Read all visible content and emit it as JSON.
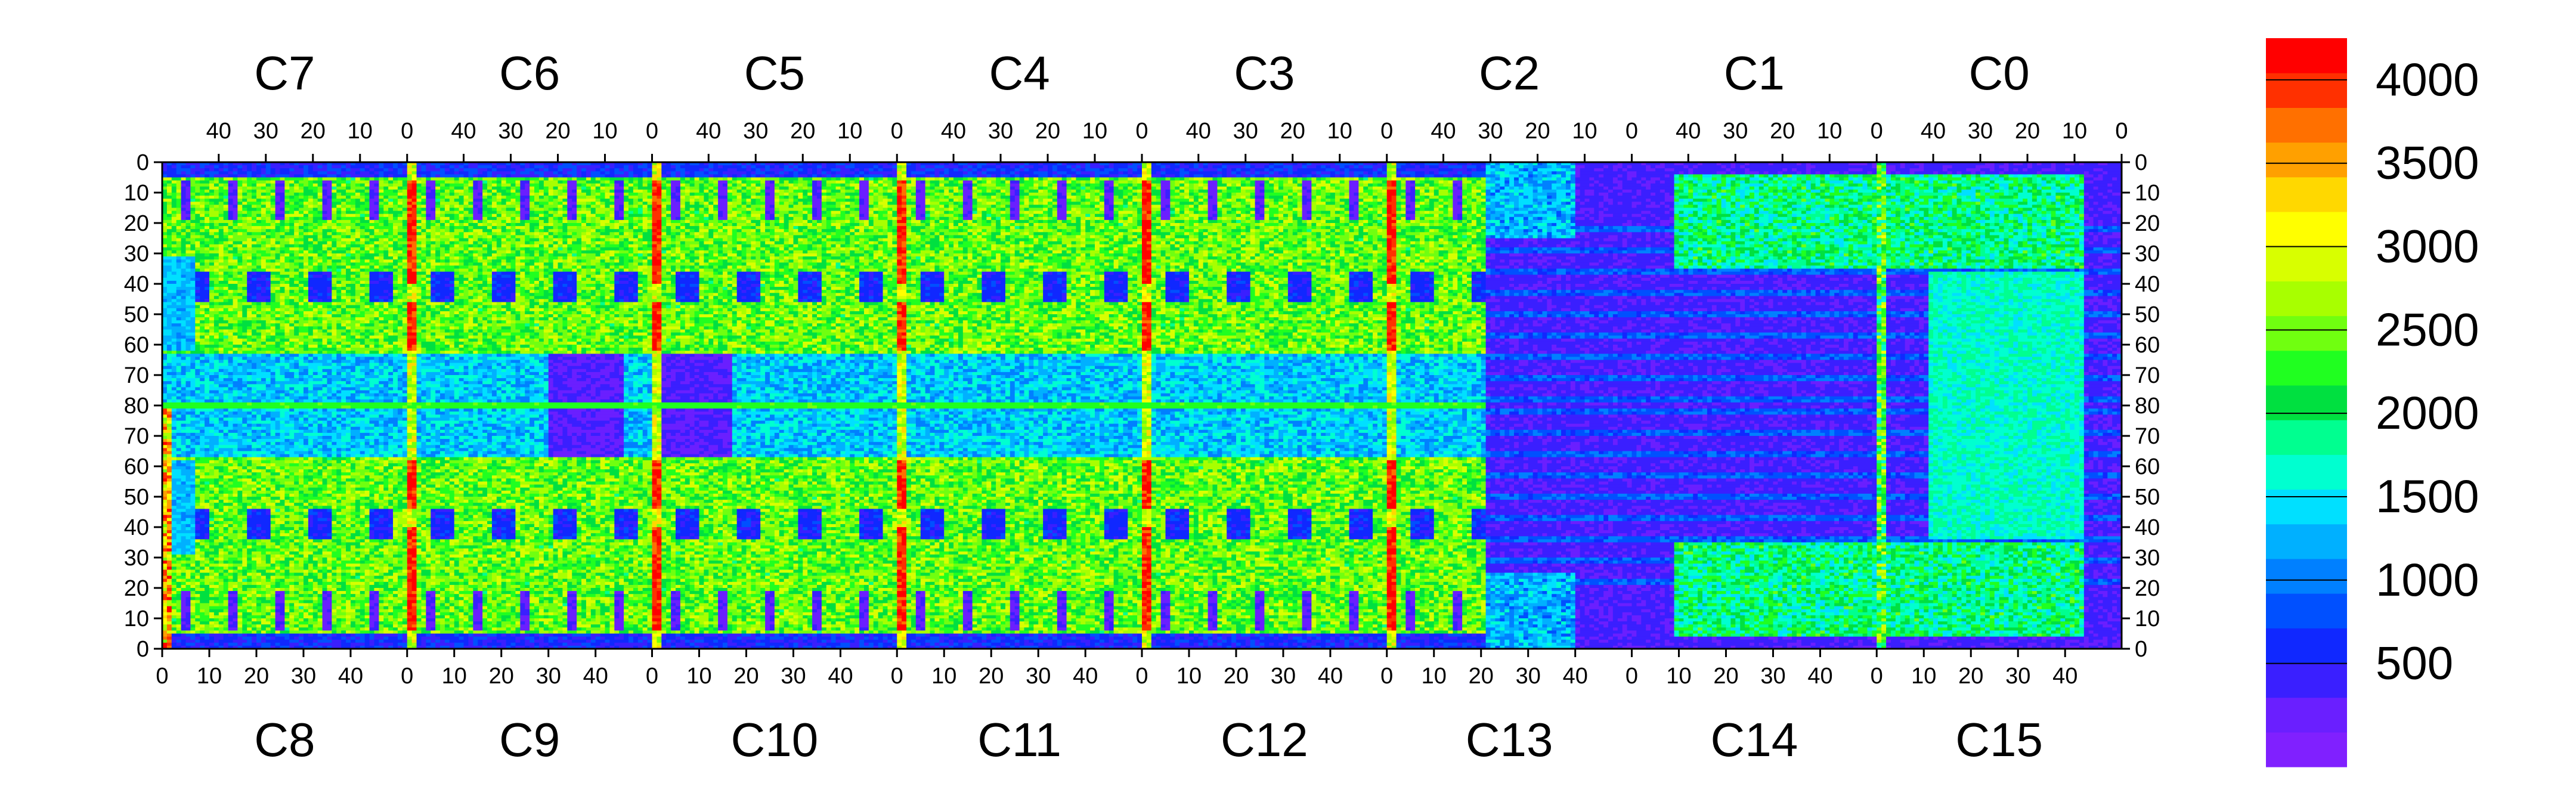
{
  "chart_data": {
    "type": "heatmap",
    "title": "",
    "xlabel": "",
    "ylabel": "",
    "top_chips": [
      "C7",
      "C6",
      "C5",
      "C4",
      "C3",
      "C2",
      "C1",
      "C0"
    ],
    "bottom_chips": [
      "C8",
      "C9",
      "C10",
      "C11",
      "C12",
      "C13",
      "C14",
      "C15"
    ],
    "top_axis_tick_labels": [
      "40",
      "30",
      "20",
      "10",
      "0"
    ],
    "bottom_axis_tick_labels": [
      "0",
      "10",
      "20",
      "30",
      "40"
    ],
    "y_tick_labels": [
      "0",
      "10",
      "20",
      "30",
      "40",
      "50",
      "60",
      "70",
      "80",
      "70",
      "60",
      "50",
      "40",
      "30",
      "20",
      "10",
      "0"
    ],
    "columns_per_chip": 52,
    "rows_per_half": 80,
    "colorbar": {
      "range": [
        0,
        4000
      ],
      "ticks": [
        "500",
        "1000",
        "1500",
        "2000",
        "2500",
        "3000",
        "3500",
        "4000"
      ],
      "colors": [
        "#8020ff",
        "#6a1fff",
        "#3a1fff",
        "#1028ff",
        "#0050ff",
        "#0080ff",
        "#00b0ff",
        "#00e0ff",
        "#00ffd0",
        "#00ff90",
        "#00e040",
        "#20ff20",
        "#70ff10",
        "#a8ff00",
        "#d8ff00",
        "#ffff00",
        "#ffd800",
        "#ffa000",
        "#ff7000",
        "#ff3000",
        "#ff0000"
      ]
    },
    "notes": "Per-pixel occupancy map of 16 readout chips; features include high-occupancy (red) double-column at chip boundaries, low-occupancy (blue/violet) blocks, and a dense horizontal line at the chip row boundary (row 80)."
  }
}
